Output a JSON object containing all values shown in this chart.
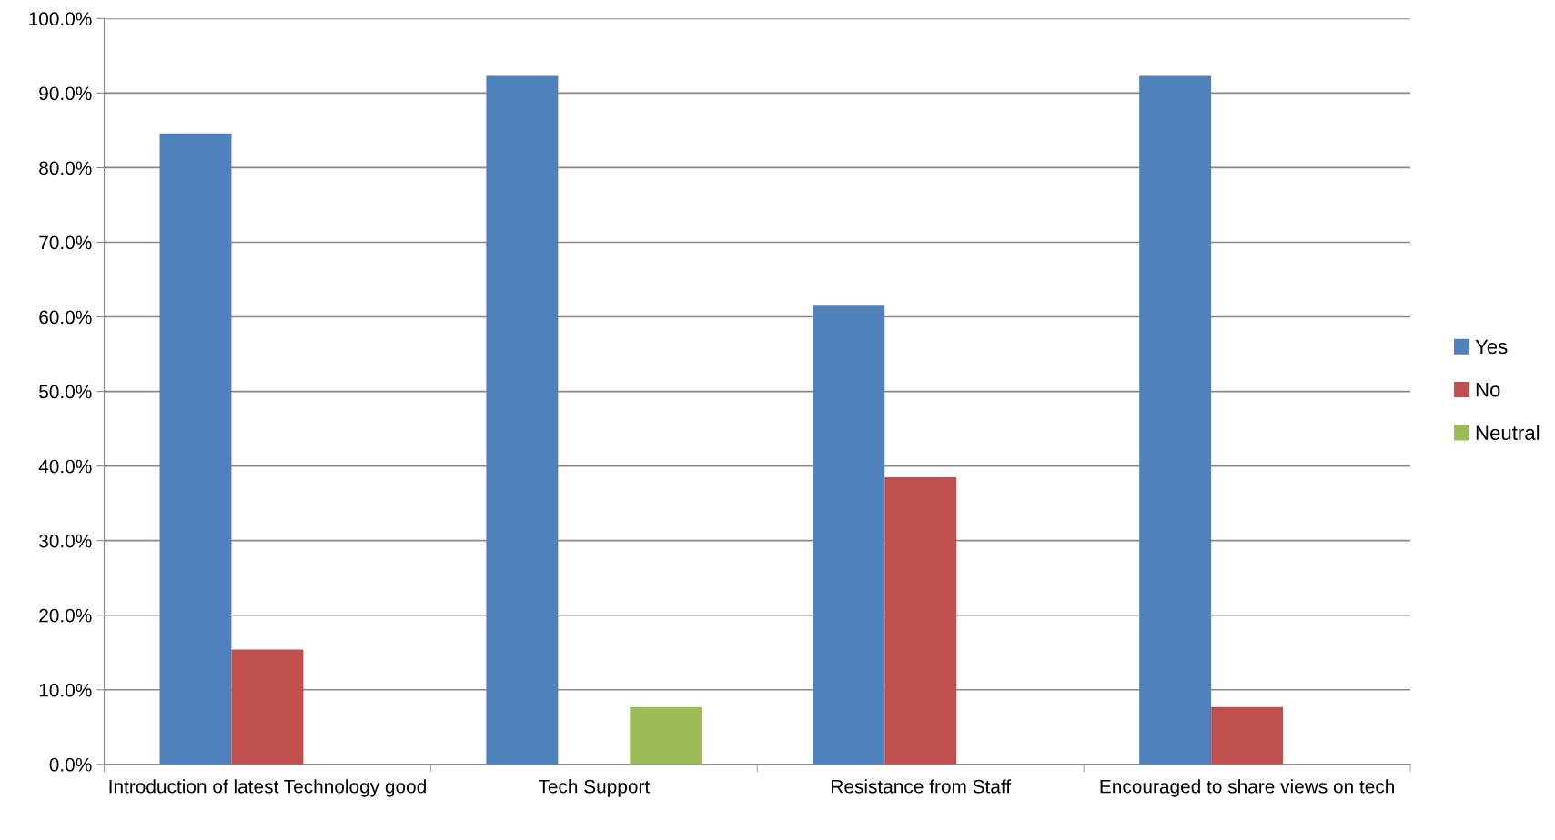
{
  "chart_data": {
    "type": "bar",
    "categories": [
      "Introduction of latest Technology good",
      "Tech Support",
      "Resistance from Staff",
      "Encouraged to share views on tech"
    ],
    "series": [
      {
        "name": "Yes",
        "color": "#4f81bd",
        "values": [
          84.6,
          92.3,
          61.5,
          92.3
        ]
      },
      {
        "name": "No",
        "color": "#c0504d",
        "values": [
          15.4,
          null,
          38.5,
          7.7
        ]
      },
      {
        "name": "Neutral",
        "color": "#9bbb59",
        "values": [
          null,
          7.7,
          null,
          null
        ]
      }
    ],
    "ylim": [
      0,
      100
    ],
    "yticks": [
      {
        "value": 0,
        "label": "0.0%"
      },
      {
        "value": 10,
        "label": "10.0%"
      },
      {
        "value": 20,
        "label": "20.0%"
      },
      {
        "value": 30,
        "label": "30.0%"
      },
      {
        "value": 40,
        "label": "40.0%"
      },
      {
        "value": 50,
        "label": "50.0%"
      },
      {
        "value": 60,
        "label": "60.0%"
      },
      {
        "value": 70,
        "label": "70.0%"
      },
      {
        "value": 80,
        "label": "80.0%"
      },
      {
        "value": 90,
        "label": "90.0%"
      },
      {
        "value": 100,
        "label": "100.0%"
      }
    ],
    "grid": "y",
    "legend": "right"
  }
}
